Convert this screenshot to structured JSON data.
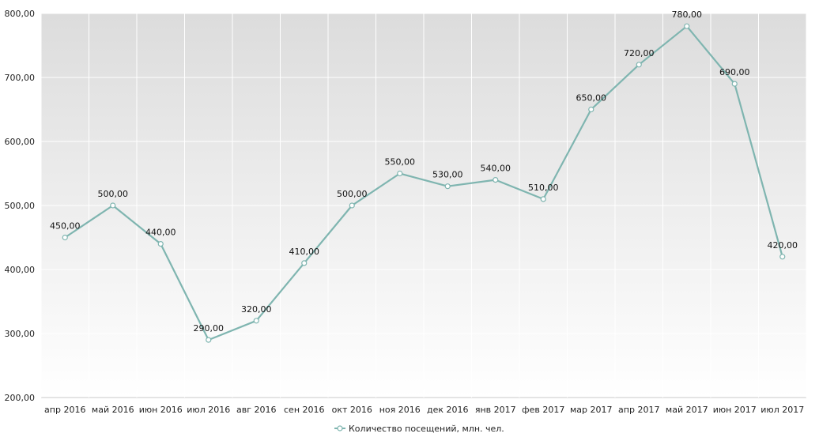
{
  "chart_data": {
    "type": "line",
    "categories": [
      "апр 2016",
      "май 2016",
      "июн 2016",
      "июл 2016",
      "авг 2016",
      "сен 2016",
      "окт 2016",
      "ноя 2016",
      "дек 2016",
      "янв 2017",
      "фев 2017",
      "мар 2017",
      "апр 2017",
      "май 2017",
      "июн 2017",
      "июл 2017"
    ],
    "series": [
      {
        "name": "Количество посещений, млн. чел.",
        "values": [
          450,
          500,
          440,
          290,
          320,
          410,
          500,
          550,
          530,
          540,
          510,
          650,
          720,
          780,
          690,
          420
        ],
        "labels": [
          "450,00",
          "500,00",
          "440,00",
          "290,00",
          "320,00",
          "410,00",
          "500,00",
          "550,00",
          "530,00",
          "540,00",
          "510,00",
          "650,00",
          "720,00",
          "780,00",
          "690,00",
          "420,00"
        ],
        "color": "#7fb5b0"
      }
    ],
    "ylim": [
      200,
      800
    ],
    "yticks": [
      200,
      300,
      400,
      500,
      600,
      700,
      800
    ],
    "ytick_labels": [
      "200,00",
      "300,00",
      "400,00",
      "500,00",
      "600,00",
      "700,00",
      "800,00"
    ],
    "grid": true,
    "legend": "bottom-center"
  }
}
